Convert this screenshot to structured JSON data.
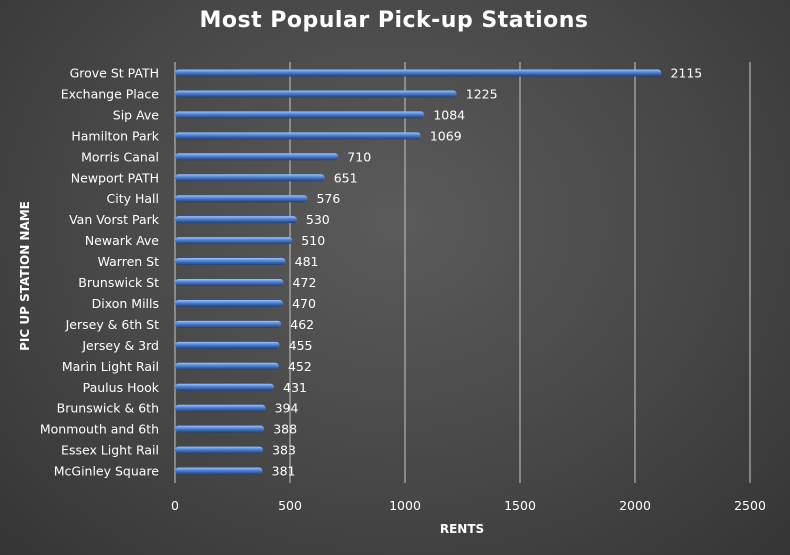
{
  "chart_data": {
    "type": "bar",
    "orientation": "horizontal",
    "title": "Most Popular Pick-up Stations",
    "xlabel": "RENTS",
    "ylabel": "PIC UP STATION NAME",
    "categories": [
      "Grove St PATH",
      "Exchange Place",
      "Sip Ave",
      "Hamilton Park",
      "Morris Canal",
      "Newport PATH",
      "City Hall",
      "Van Vorst Park",
      "Newark Ave",
      "Warren St",
      "Brunswick St",
      "Dixon Mills",
      "Jersey & 6th St",
      "Jersey & 3rd",
      "Marin Light Rail",
      "Paulus Hook",
      "Brunswick & 6th",
      "Monmouth and 6th",
      "Essex Light Rail",
      "McGinley Square"
    ],
    "values": [
      2115,
      1225,
      1084,
      1069,
      710,
      651,
      576,
      530,
      510,
      481,
      472,
      470,
      462,
      455,
      452,
      431,
      394,
      388,
      383,
      381
    ],
    "xlim": [
      0,
      2500
    ],
    "xticks": [
      "0",
      "500",
      "1000",
      "1500",
      "2000",
      "2500"
    ],
    "grid": true,
    "data_labels": true,
    "colors": {
      "bar": "#4a7fd0",
      "bar_highlight": "#9cc3ff",
      "bar_shadow": "#1f3f78",
      "gridline": "#c8c8c8",
      "text": "#ffffff"
    }
  }
}
